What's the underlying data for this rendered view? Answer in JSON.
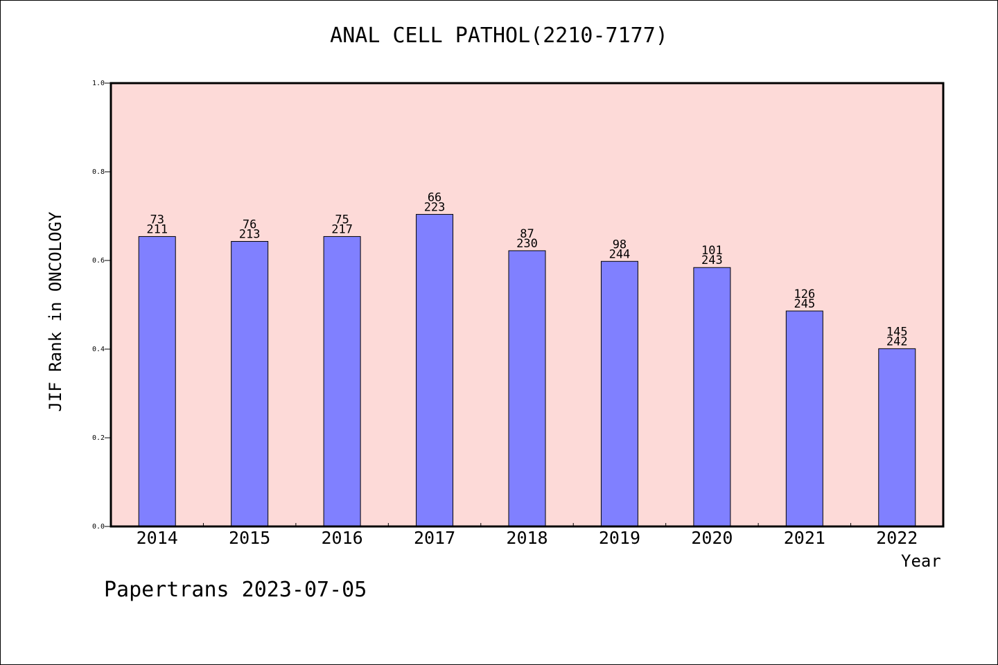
{
  "chart_data": {
    "type": "bar",
    "title": "ANAL CELL PATHOL(2210-7177)",
    "xlabel": "Year",
    "ylabel": "JIF Rank in ONCOLOGY",
    "categories": [
      "2014",
      "2015",
      "2016",
      "2017",
      "2018",
      "2019",
      "2020",
      "2021",
      "2022"
    ],
    "values": [
      0.654,
      0.643,
      0.654,
      0.704,
      0.622,
      0.598,
      0.584,
      0.486,
      0.401
    ],
    "ranks": [
      "73",
      "76",
      "75",
      "66",
      "87",
      "98",
      "101",
      "126",
      "145"
    ],
    "totals": [
      "211",
      "213",
      "217",
      "223",
      "230",
      "244",
      "243",
      "245",
      "242"
    ],
    "ylim": [
      0,
      1
    ],
    "yticks": [
      "0.0",
      "0.2",
      "0.4",
      "0.6",
      "0.8",
      "1.0"
    ],
    "grid": false,
    "colors": {
      "bar": "#8080ff",
      "plot_background": "#fddad8"
    }
  },
  "footer": "Papertrans 2023-07-05"
}
